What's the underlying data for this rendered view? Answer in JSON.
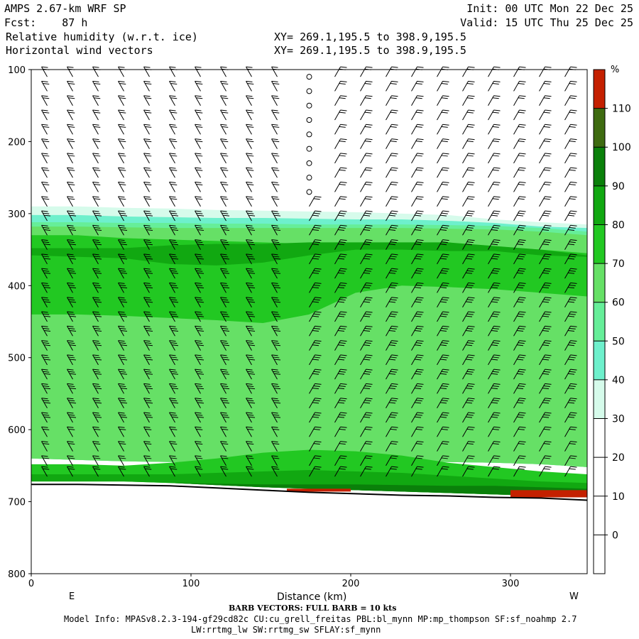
{
  "header": {
    "model": "AMPS 2.67-km WRF SP",
    "init": "Init: 00 UTC Mon 22 Dec 25",
    "fcst": "Fcst:    87 h",
    "valid": "Valid: 15 UTC Thu 25 Dec 25",
    "field1": "Relative humidity (w.r.t. ice)",
    "xy1": "XY= 269.1,195.5 to 398.9,195.5",
    "field2": "Horizontal wind vectors",
    "xy2": "XY= 269.1,195.5 to 398.9,195.5"
  },
  "footer": {
    "barb_note": "BARB VECTORS:  FULL BARB = 10 kts",
    "model_info": "Model Info: MPASv8.2.3-194-gf29cd82c CU:cu_grell_freitas PBL:bl_mynn MP:mp_thompson SF:sf_noahmp 2.7",
    "model_info2": "LW:rrtmg_lw SW:rrtmg_sw SFLAY:sf_mynn"
  },
  "chart_data": {
    "type": "heatmap",
    "title": "Relative humidity (w.r.t. ice)",
    "xlabel": "Distance (km)",
    "ylabel": "",
    "xlim": [
      0,
      348
    ],
    "ylim": [
      800,
      100
    ],
    "x_ticks": [
      0,
      100,
      200,
      300
    ],
    "y_ticks": [
      100,
      200,
      300,
      400,
      500,
      600,
      700,
      800
    ],
    "x_end_labels": {
      "left": "E",
      "right": "W"
    },
    "colorbar": {
      "unit": "%",
      "levels": [
        0,
        10,
        20,
        30,
        40,
        50,
        60,
        70,
        80,
        90,
        100,
        110
      ],
      "colors": [
        "#ffffff",
        "#ffffff",
        "#ffffff",
        "#ffffff",
        "#d6fbeb",
        "#6ef0cc",
        "#66ee99",
        "#66e066",
        "#22c822",
        "#11a811",
        "#0a800a",
        "#3e6b10",
        "#c42000"
      ]
    },
    "rh_layers": [
      {
        "range": "30-40",
        "top": [
          290,
          290,
          292,
          293,
          295,
          296,
          297,
          298,
          300,
          302,
          308,
          312,
          315
        ],
        "bottom": [
          640,
          642,
          644,
          645,
          646,
          646,
          645,
          644,
          644,
          645,
          646,
          648,
          652
        ],
        "color": "#d6fbeb"
      },
      {
        "range": "40-50",
        "top": [
          302,
          302,
          304,
          305,
          306,
          306,
          307,
          308,
          308,
          310,
          313,
          318,
          320
        ],
        "bottom": [
          640,
          642,
          644,
          645,
          646,
          646,
          645,
          644,
          644,
          645,
          646,
          648,
          652
        ],
        "color": "#6ef0cc"
      },
      {
        "range": "50-60",
        "top": [
          312,
          312,
          313,
          313,
          314,
          314,
          315,
          315,
          315,
          316,
          317,
          320,
          325
        ],
        "bottom": [
          640,
          642,
          644,
          645,
          646,
          646,
          645,
          644,
          644,
          645,
          646,
          648,
          652
        ],
        "color": "#66ee99"
      },
      {
        "range": "60-70",
        "top": [
          318,
          318,
          319,
          320,
          320,
          320,
          320,
          320,
          320,
          321,
          322,
          325,
          330
        ],
        "bottom": [
          640,
          642,
          644,
          645,
          646,
          646,
          645,
          644,
          644,
          645,
          646,
          648,
          652
        ],
        "color": "#66e066"
      },
      {
        "range": "70-80",
        "top": [
          330,
          330,
          334,
          336,
          338,
          340,
          342,
          342,
          343,
          344,
          346,
          350,
          355
        ],
        "bottom": [
          440,
          440,
          442,
          445,
          448,
          452,
          440,
          410,
          400,
          402,
          405,
          410,
          415
        ],
        "color": "#22c822"
      },
      {
        "range": "80-90",
        "top": [
          348,
          348,
          348,
          344,
          342,
          342,
          340,
          340,
          340,
          340,
          345,
          350,
          358
        ],
        "bottom": [
          358,
          360,
          362,
          370,
          372,
          368,
          358,
          350,
          350,
          352,
          352,
          358,
          360
        ],
        "color": "#11a811"
      },
      {
        "range": "near-surface 80-90",
        "top": [
          648,
          648,
          650,
          646,
          640,
          632,
          628,
          630,
          636,
          646,
          652,
          658,
          662
        ],
        "bottom": [
          672,
          672,
          672,
          674,
          677,
          680,
          682,
          684,
          686,
          688,
          690,
          692,
          694
        ],
        "color": "#22c822"
      },
      {
        "range": "near-surface 90-100",
        "top": [
          662,
          662,
          662,
          662,
          660,
          658,
          656,
          658,
          660,
          664,
          668,
          672,
          674
        ],
        "bottom": [
          672,
          672,
          672,
          674,
          677,
          680,
          682,
          684,
          686,
          688,
          690,
          692,
          694
        ],
        "color": "#11a811"
      },
      {
        "range": "near-surface 100-110",
        "top": [
          672,
          672,
          672,
          674,
          675,
          676,
          676,
          676,
          677,
          678,
          678,
          680,
          682
        ],
        "bottom": [
          672,
          672,
          672,
          674,
          677,
          680,
          682,
          684,
          686,
          688,
          690,
          692,
          694
        ],
        "color": "#0a800a"
      }
    ],
    "rh_x": [
      0,
      29,
      58,
      87,
      116,
      145,
      174,
      203,
      232,
      261,
      290,
      319,
      348
    ],
    "terrain_p": [
      676,
      676,
      677,
      678,
      681,
      684,
      687,
      689,
      691,
      692,
      694,
      695,
      698
    ],
    "ice_supersat_patches": [
      {
        "x": [
          160,
          200
        ],
        "p": [
          682,
          686
        ],
        "color": "#c42000"
      },
      {
        "x": [
          300,
          348
        ],
        "p": [
          684,
          694
        ],
        "color": "#c42000"
      }
    ],
    "wind_barbs": {
      "x": [
        10,
        26,
        42,
        58,
        74,
        90,
        106,
        122,
        138,
        154,
        174,
        190,
        206,
        222,
        238,
        254,
        270,
        286,
        302,
        318,
        334
      ],
      "p": [
        110,
        130,
        150,
        170,
        190,
        210,
        230,
        250,
        270,
        290,
        310,
        330,
        350,
        370,
        390,
        410,
        430,
        450,
        470,
        490,
        510,
        530,
        550,
        570,
        590,
        610,
        630,
        650,
        665
      ],
      "calm_column_x": 174,
      "calm_column_p_range": [
        100,
        270
      ],
      "full_barb_kts": 10
    }
  }
}
